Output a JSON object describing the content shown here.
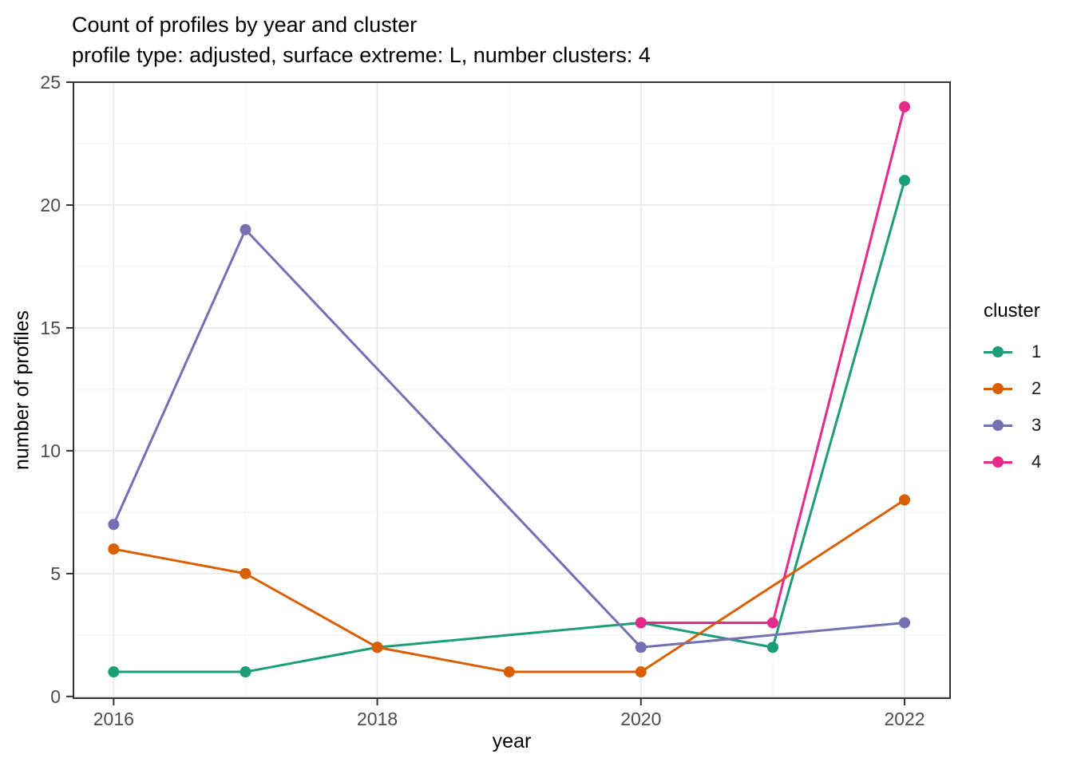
{
  "chart_data": {
    "type": "line",
    "title": "Count of profiles by year and cluster",
    "subtitle": "profile type: adjusted, surface extreme: L, number clusters: 4",
    "xlabel": "year",
    "ylabel": "number of profiles",
    "legend_title": "cluster",
    "legend_position": "right",
    "grid": true,
    "x_axis": {
      "domain": [
        2015.695,
        2022.345
      ],
      "major_ticks": [
        2016,
        2018,
        2020,
        2022
      ],
      "minor_ticks": [
        2017,
        2019,
        2021
      ]
    },
    "y_axis": {
      "domain": [
        -0.07,
        25.0
      ],
      "major_ticks": [
        0,
        5,
        10,
        15,
        20,
        25
      ],
      "minor_ticks": [
        2.5,
        7.5,
        12.5,
        17.5,
        22.5
      ]
    },
    "series": [
      {
        "name": "1",
        "color": "#1B9E77",
        "points": [
          [
            2016,
            1
          ],
          [
            2017,
            1
          ],
          [
            2018,
            2
          ],
          [
            2020,
            3
          ],
          [
            2021,
            2
          ],
          [
            2022,
            21
          ]
        ]
      },
      {
        "name": "2",
        "color": "#D95F02",
        "points": [
          [
            2016,
            6
          ],
          [
            2017,
            5
          ],
          [
            2018,
            2
          ],
          [
            2019,
            1
          ],
          [
            2020,
            1
          ],
          [
            2022,
            8
          ]
        ]
      },
      {
        "name": "3",
        "color": "#7570B3",
        "points": [
          [
            2016,
            7
          ],
          [
            2017,
            19
          ],
          [
            2020,
            2
          ],
          [
            2022,
            3
          ]
        ]
      },
      {
        "name": "4",
        "color": "#E7298A",
        "points": [
          [
            2020,
            3
          ],
          [
            2021,
            3
          ],
          [
            2022,
            24
          ]
        ]
      }
    ],
    "style": {
      "background": "#FFFFFF",
      "panel_border": "#333333",
      "grid_major": "#E8E8E8",
      "grid_minor": "#F4F4F4",
      "tick_color": "#333333",
      "tick_label_color": "#4D4D4D",
      "text_color": "#000000",
      "line_width": 3,
      "point_radius": 7
    }
  }
}
